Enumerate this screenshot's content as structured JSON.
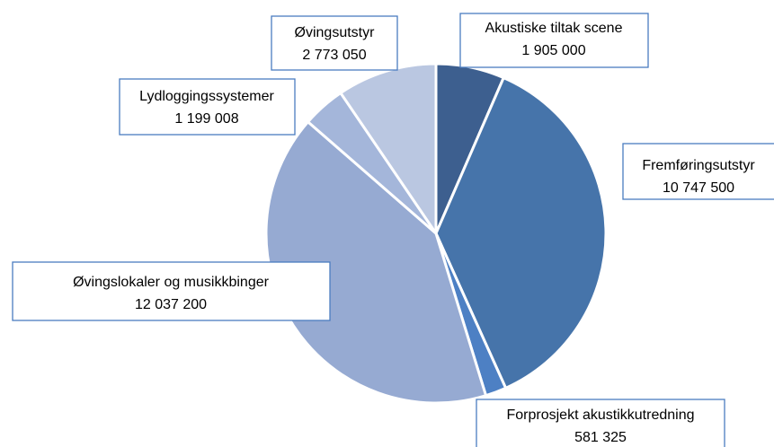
{
  "chart_data": {
    "type": "pie",
    "categories": [
      "Akustiske tiltak scene",
      "Fremføringsutstyr",
      "Forprosjekt akustikkutredning",
      "Øvingslokaler og musikkbinger",
      "Lydloggingssystemer",
      "Øvingsutstyr"
    ],
    "values": [
      1905000,
      10747500,
      581325,
      12037200,
      1199008,
      2773050
    ],
    "value_labels": [
      "1 905 000",
      "10 747 500",
      "581 325",
      "12 037 200",
      "1 199 008",
      "2 773 050"
    ],
    "colors": [
      "#3d5f8f",
      "#4674aa",
      "#4d80c4",
      "#96aad2",
      "#a4b6da",
      "#bac7e1"
    ]
  }
}
